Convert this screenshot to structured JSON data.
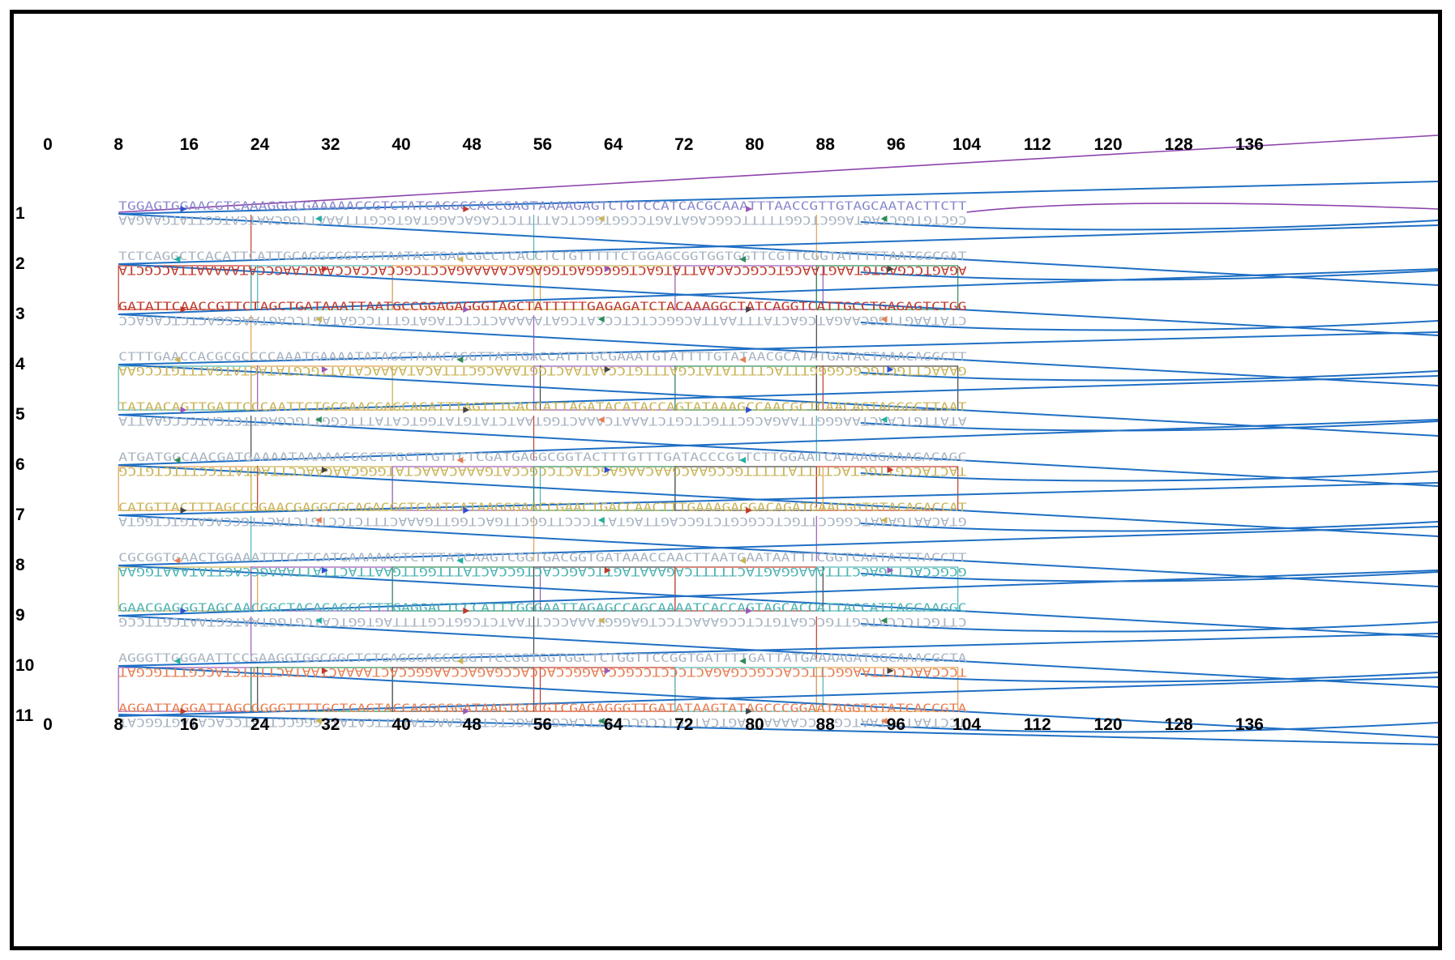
{
  "diagram": {
    "axis_ticks": [
      "0",
      "8",
      "16",
      "24",
      "32",
      "40",
      "48",
      "56",
      "64",
      "72",
      "80",
      "88",
      "96",
      "104",
      "112",
      "120",
      "128",
      "136"
    ],
    "helix_labels": [
      "1",
      "2",
      "3",
      "4",
      "5",
      "6",
      "7",
      "8",
      "9",
      "10",
      "11"
    ],
    "strands": [
      {
        "helix": 0,
        "text": "TGGAGTGGAACGTCAAAGGGCGAAAAACCGTCTATCAGGCCACCGAGTAAAAGAGTCTGTCCATCACGCAAATTTAACCGTTGTAGCAATACTTCTT",
        "flip": false,
        "color": "#8a8acc"
      },
      {
        "helix": 0,
        "text": "CGCTGTGGCTAGTAGGCTCGGTTTTTCGGCAGATAGTCCGGTGGCTCATTTTCTCAGACAGGTAGTGCGTTTAAATTGGCAATCATCGTTATGAAGAA",
        "flip": true,
        "color": "#a8b4c2"
      },
      {
        "helix": 1,
        "text": "TCTCAGGCTCACATTCATTGCAGGCGGTGTTAATACTGACCGCCTCACCTCTGTTTTTCTGGAGCGGTGGTGGTTCGTTCGGTATTTTTAATGGCGAT",
        "flip": false,
        "color": "#a8b4c2"
      },
      {
        "helix": 1,
        "text": "AGAGTCCGAGTGTAAGTAACGTCCGCCACAATTATGACTGGCGGAGTGGAGACAAAAAGACCTCGCCACCACCAAGCAAGCCATAAAAATTACCGCTA",
        "flip": true,
        "color": "#c0392b"
      },
      {
        "helix": 2,
        "text": "GATATTCAACCGTTCTAGCTGATAAATTAATGCCGGAGAGGGTAGCTATTTTTGAGAGATCTACAAAGGCTATCAGGTCATTGCCTGAGAGTCTGG",
        "flip": false,
        "color": "#c0392b"
      },
      {
        "helix": 2,
        "text": "CTATAAGTTGGCAAGATCGACTATTTAATTACGGCCTCTCCCATCGATAAAAACTCTCTAGATGTTTCCGATAGTCCAGTAACGGACTCTCAGACC",
        "flip": true,
        "color": "#a8b4c2"
      },
      {
        "helix": 3,
        "text": "CTTTGAACCACGCGCCCCAAATGAAAATATAGCTAAACAGGTTATTGACCATTTGCGAAATGTATTTTGTATAACGCATATGATACTAAACAGGCTT",
        "flip": false,
        "color": "#a8b4c2"
      },
      {
        "helix": 3,
        "text": "GAAACTTGGTGCGCGGGGTTTACTTTTATATCGATTTGTCCAATAACTGGTAAACGCTTTACATAAAACATATTGCGTATACTATGATTTGTCCGAA",
        "flip": true,
        "color": "#c9b458"
      },
      {
        "helix": 4,
        "text": "TATAACAGTTGATTCCCAATTCTGCGAACGAGCAGATTTAGTTTGACCATTAGATACATACCAGTATAAAGCCAACGCTCAACAGTAGGGCTTAAT",
        "flip": false,
        "color": "#c9b458"
      },
      {
        "helix": 4,
        "text": "ATATTGTCAACTAAGGGTTAAGACGCTTGCTCGTCTAAATCAAACTGGTAATCTATGTATGGTCATATTTCGGTTGCGAGTTGTCATCCCGAATTA",
        "flip": true,
        "color": "#a8b4c2"
      },
      {
        "helix": 5,
        "text": "ATGATGGCAACGATGAAAATAAAAACGGCTTGCTTGTTCTCGATGAGGCGGTACTTTGTTTGATACCCGTTCTTGGAATCATAAGGAAAGACAGC",
        "flip": false,
        "color": "#a8b4c2"
      },
      {
        "helix": 5,
        "text": "TACTACCGTTGCTACTTTTATTTTTGCCGAACGAACAAGAGCTACTCCGCCATGAAACAAACTATGGGCAAGAACCTTAGTATTCCTTTCTGTCG",
        "flip": true,
        "color": "#c9b458"
      },
      {
        "helix": 6,
        "text": "CATGTTACTTTAGCCGGAACGAGGCGCAGACGGTCAATCATAAGGGAACCGAACTGACCAACTTTGAAAGAGGACAGATGAACGGTGTACAGACCAT",
        "flip": false,
        "color": "#c9b458"
      },
      {
        "helix": 6,
        "text": "GTACAATGAAATCGGCCTTGCTCCGCGTCTGCCAGTTAGTATTCCCTTGGCTTGACTGGTTGAAACTTTCTCCTGTCTACTTGCCACATGTCTGGTA",
        "flip": true,
        "color": "#a8b4c2"
      },
      {
        "helix": 7,
        "text": "CGCGGTGAACTGGAAATTTCCTCATGAAAAAGTCTTTATCAAGTCGGTGACGGTGATAAACCAACTTAATGAATAATTTCGGTCAATATTTACCTT",
        "flip": false,
        "color": "#a8b4c2"
      },
      {
        "helix": 7,
        "text": "GCGCCACTTGACCTTTAAAGGAGTACTTTTTCAGAAATAGTTCAGCCACTGCCACTATTTGGTTGAATTACTTATTAAAGCCAGTTATAAATGGAA",
        "flip": true,
        "color": "#4fb3b3"
      },
      {
        "helix": 8,
        "text": "GAACGAGGGTAGCAACGGCTACAGAGGCTTTGAGGACTCCCATTTGGGAATTAGAGCCAGCAAAATCACCAGTAGCACCATTACCATTAGCAAGGC",
        "flip": false,
        "color": "#4fb3b3"
      },
      {
        "helix": 8,
        "text": "CTTGCTCCCATCGTTGCCGATGTCTCCGAAACTCCTGAGGGTAAACCCTTAATCTCGGTCGTTTTAGTGGTCATCGTGGTAATGGTAATCGTTCCG",
        "flip": true,
        "color": "#a8b4c2"
      },
      {
        "helix": 9,
        "text": "AGGGTTGGGAATTCCGAAGGTGGCGGCTCTGAGGGAGGCGGTTCCGGTGGTGGCTCTGGTTCCGGTGATTTTGATTATGAAAAGATGGCAAACGCTA",
        "flip": false,
        "color": "#a8b4c2"
      },
      {
        "helix": 9,
        "text": "TCCCAACCCTTAAGGCTTCCACCGCCGAGACTCCCTCCGCCAAGGCCACCACCGAGACCAAGGCCACTAAAACTAATACTTTTCTACCGTTTGCGAT",
        "flip": true,
        "color": "#e67e52"
      },
      {
        "helix": 10,
        "text": "AGGATTAGGATTAGCGGGGTTTTGCTCAGTACCAGGCGGATAAGTGCCGTCGAGAGGGTTGATATAAGTATAGCCCGGAATAGGTGTATCACCGTA",
        "flip": false,
        "color": "#e67e52"
      },
      {
        "helix": 10,
        "text": "TCCTAATCCTAATCGCCCCAAAACGAGTCATGGTCCGCCTATTCACGGCAGCTCTCCCAACTATATTCATATCGGGCCTTATCCACATAGTGGCAT",
        "flip": true,
        "color": "#a8b4c2"
      }
    ]
  }
}
